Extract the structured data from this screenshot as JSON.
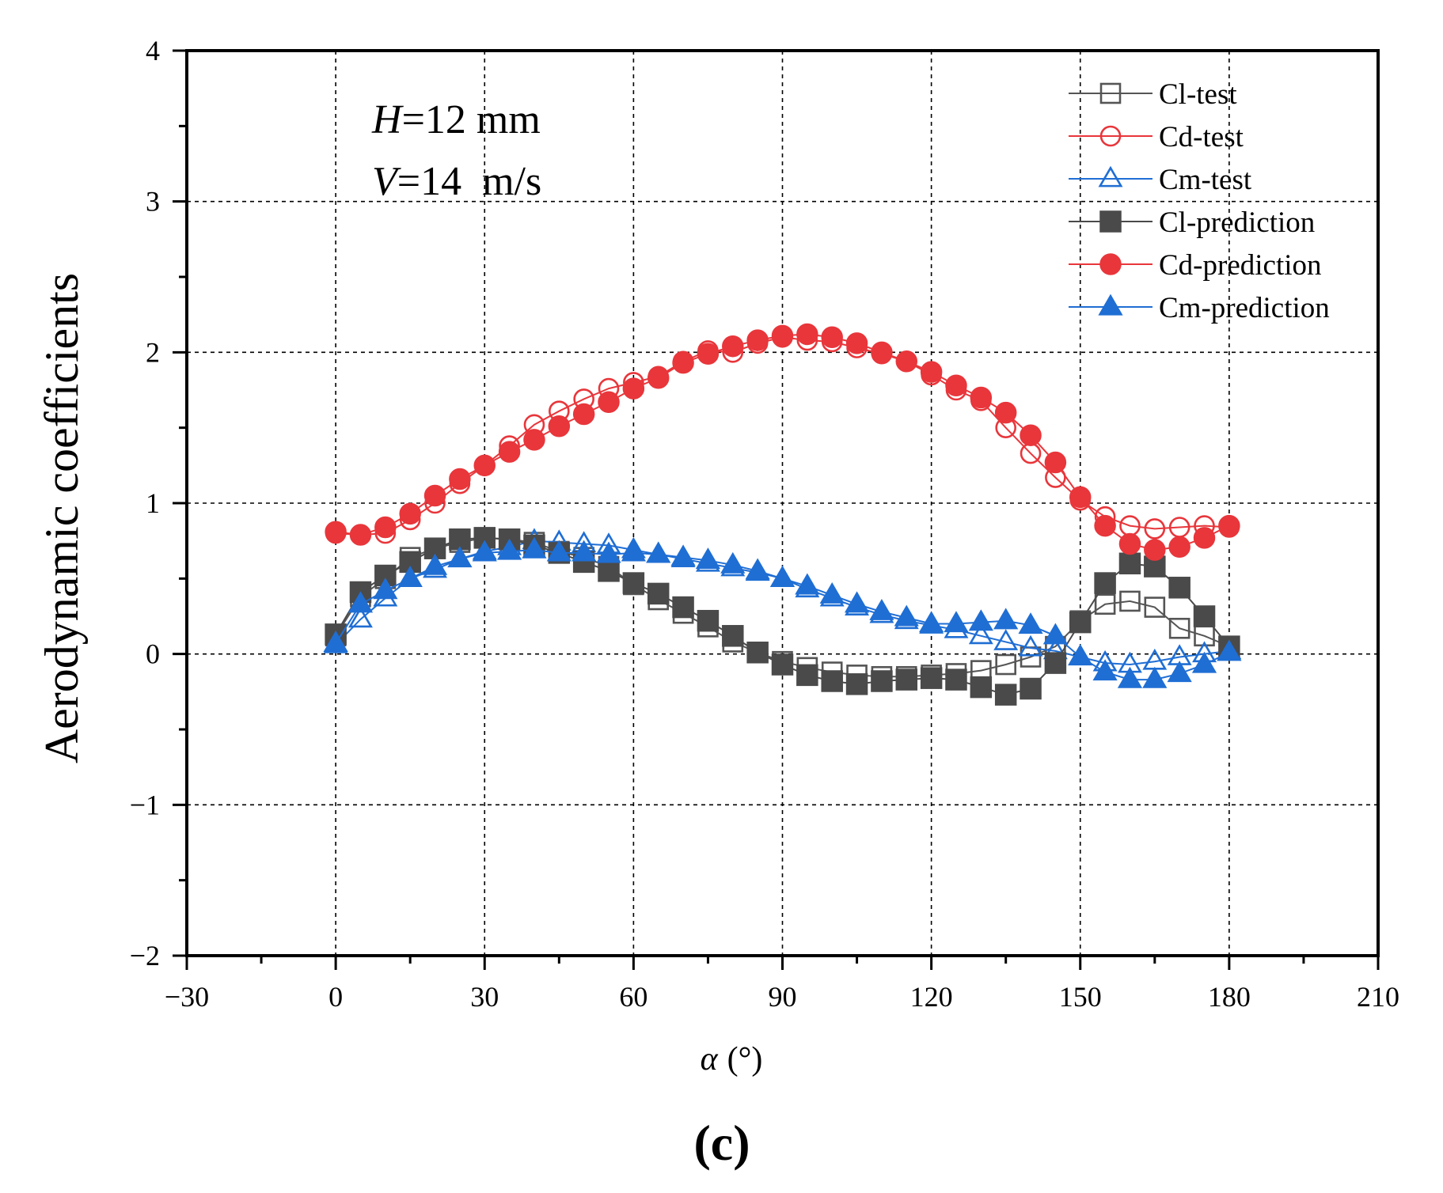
{
  "chart_data": {
    "type": "line",
    "title": "",
    "xlabel_symbol": "α",
    "xlabel_unit": "(°)",
    "ylabel": "Aerodynamic coefficients",
    "xlim": [
      -30,
      210
    ],
    "ylim": [
      -2,
      4
    ],
    "xticks": [
      -30,
      0,
      30,
      60,
      90,
      120,
      150,
      180,
      210
    ],
    "yticks": [
      -2,
      -1,
      0,
      1,
      2,
      3,
      4
    ],
    "xtick_labels": [
      "−30",
      "0",
      "30",
      "60",
      "90",
      "120",
      "150",
      "180",
      "210"
    ],
    "ytick_labels": [
      "−2",
      "−1",
      "0",
      "1",
      "2",
      "3",
      "4"
    ],
    "grid": true,
    "legend_position": "top-right",
    "annotations": {
      "height_symbol": "H",
      "height_value": "=12 mm",
      "velocity_symbol": "V",
      "velocity_value": "=14  m/s"
    },
    "panel_label": "(c)",
    "x": [
      0,
      5,
      10,
      15,
      20,
      25,
      30,
      35,
      40,
      45,
      50,
      55,
      60,
      65,
      70,
      75,
      80,
      85,
      90,
      95,
      100,
      105,
      110,
      115,
      120,
      125,
      130,
      135,
      140,
      145,
      150,
      155,
      160,
      165,
      170,
      175,
      180
    ],
    "series": [
      {
        "name": "Cl-test",
        "color": "#555555",
        "marker": "square",
        "filled": false,
        "values": [
          0.12,
          0.38,
          0.5,
          0.64,
          0.7,
          0.74,
          0.77,
          0.76,
          0.74,
          0.68,
          0.64,
          0.58,
          0.46,
          0.36,
          0.27,
          0.18,
          0.08,
          0.01,
          -0.05,
          -0.09,
          -0.12,
          -0.14,
          -0.15,
          -0.15,
          -0.14,
          -0.13,
          -0.11,
          -0.07,
          -0.02,
          0.05,
          0.22,
          0.33,
          0.35,
          0.31,
          0.17,
          0.12,
          0.05
        ]
      },
      {
        "name": "Cd-test",
        "color": "#e8363b",
        "marker": "circle",
        "filled": false,
        "values": [
          0.8,
          0.79,
          0.8,
          0.89,
          1.0,
          1.13,
          1.25,
          1.38,
          1.52,
          1.61,
          1.69,
          1.76,
          1.8,
          1.84,
          1.94,
          2.01,
          2.0,
          2.06,
          2.1,
          2.08,
          2.07,
          2.03,
          1.99,
          1.94,
          1.85,
          1.75,
          1.68,
          1.5,
          1.33,
          1.17,
          1.02,
          0.91,
          0.85,
          0.83,
          0.84,
          0.85,
          0.84
        ]
      },
      {
        "name": "Cm-test",
        "color": "#1f6ed4",
        "marker": "triangle",
        "filled": false,
        "values": [
          0.06,
          0.23,
          0.37,
          0.5,
          0.56,
          0.63,
          0.68,
          0.71,
          0.75,
          0.74,
          0.73,
          0.72,
          0.69,
          0.66,
          0.63,
          0.6,
          0.57,
          0.54,
          0.5,
          0.43,
          0.37,
          0.31,
          0.26,
          0.22,
          0.19,
          0.16,
          0.12,
          0.08,
          0.04,
          0.02,
          -0.02,
          -0.06,
          -0.07,
          -0.05,
          -0.02,
          0.0,
          0.02
        ]
      },
      {
        "name": "Cl-prediction",
        "color": "#4a4a4a",
        "marker": "square",
        "filled": true,
        "values": [
          0.13,
          0.41,
          0.52,
          0.61,
          0.7,
          0.76,
          0.77,
          0.76,
          0.72,
          0.67,
          0.61,
          0.55,
          0.47,
          0.4,
          0.31,
          0.22,
          0.12,
          0.01,
          -0.07,
          -0.14,
          -0.18,
          -0.2,
          -0.18,
          -0.17,
          -0.16,
          -0.17,
          -0.22,
          -0.27,
          -0.23,
          -0.06,
          0.21,
          0.47,
          0.6,
          0.58,
          0.44,
          0.25,
          0.05
        ]
      },
      {
        "name": "Cd-prediction",
        "color": "#e8363b",
        "marker": "circle",
        "filled": true,
        "values": [
          0.81,
          0.79,
          0.84,
          0.93,
          1.05,
          1.16,
          1.25,
          1.34,
          1.42,
          1.51,
          1.59,
          1.67,
          1.76,
          1.83,
          1.93,
          1.99,
          2.04,
          2.08,
          2.11,
          2.12,
          2.1,
          2.06,
          2.0,
          1.94,
          1.87,
          1.78,
          1.7,
          1.6,
          1.45,
          1.27,
          1.04,
          0.85,
          0.73,
          0.69,
          0.71,
          0.77,
          0.85
        ]
      },
      {
        "name": "Cm-prediction",
        "color": "#1f6ed4",
        "marker": "triangle",
        "filled": true,
        "values": [
          0.07,
          0.33,
          0.42,
          0.5,
          0.58,
          0.63,
          0.67,
          0.68,
          0.69,
          0.67,
          0.67,
          0.66,
          0.67,
          0.66,
          0.64,
          0.62,
          0.59,
          0.55,
          0.5,
          0.45,
          0.39,
          0.33,
          0.28,
          0.24,
          0.2,
          0.2,
          0.21,
          0.22,
          0.19,
          0.12,
          -0.02,
          -0.12,
          -0.17,
          -0.17,
          -0.13,
          -0.07,
          0.01
        ]
      }
    ]
  }
}
